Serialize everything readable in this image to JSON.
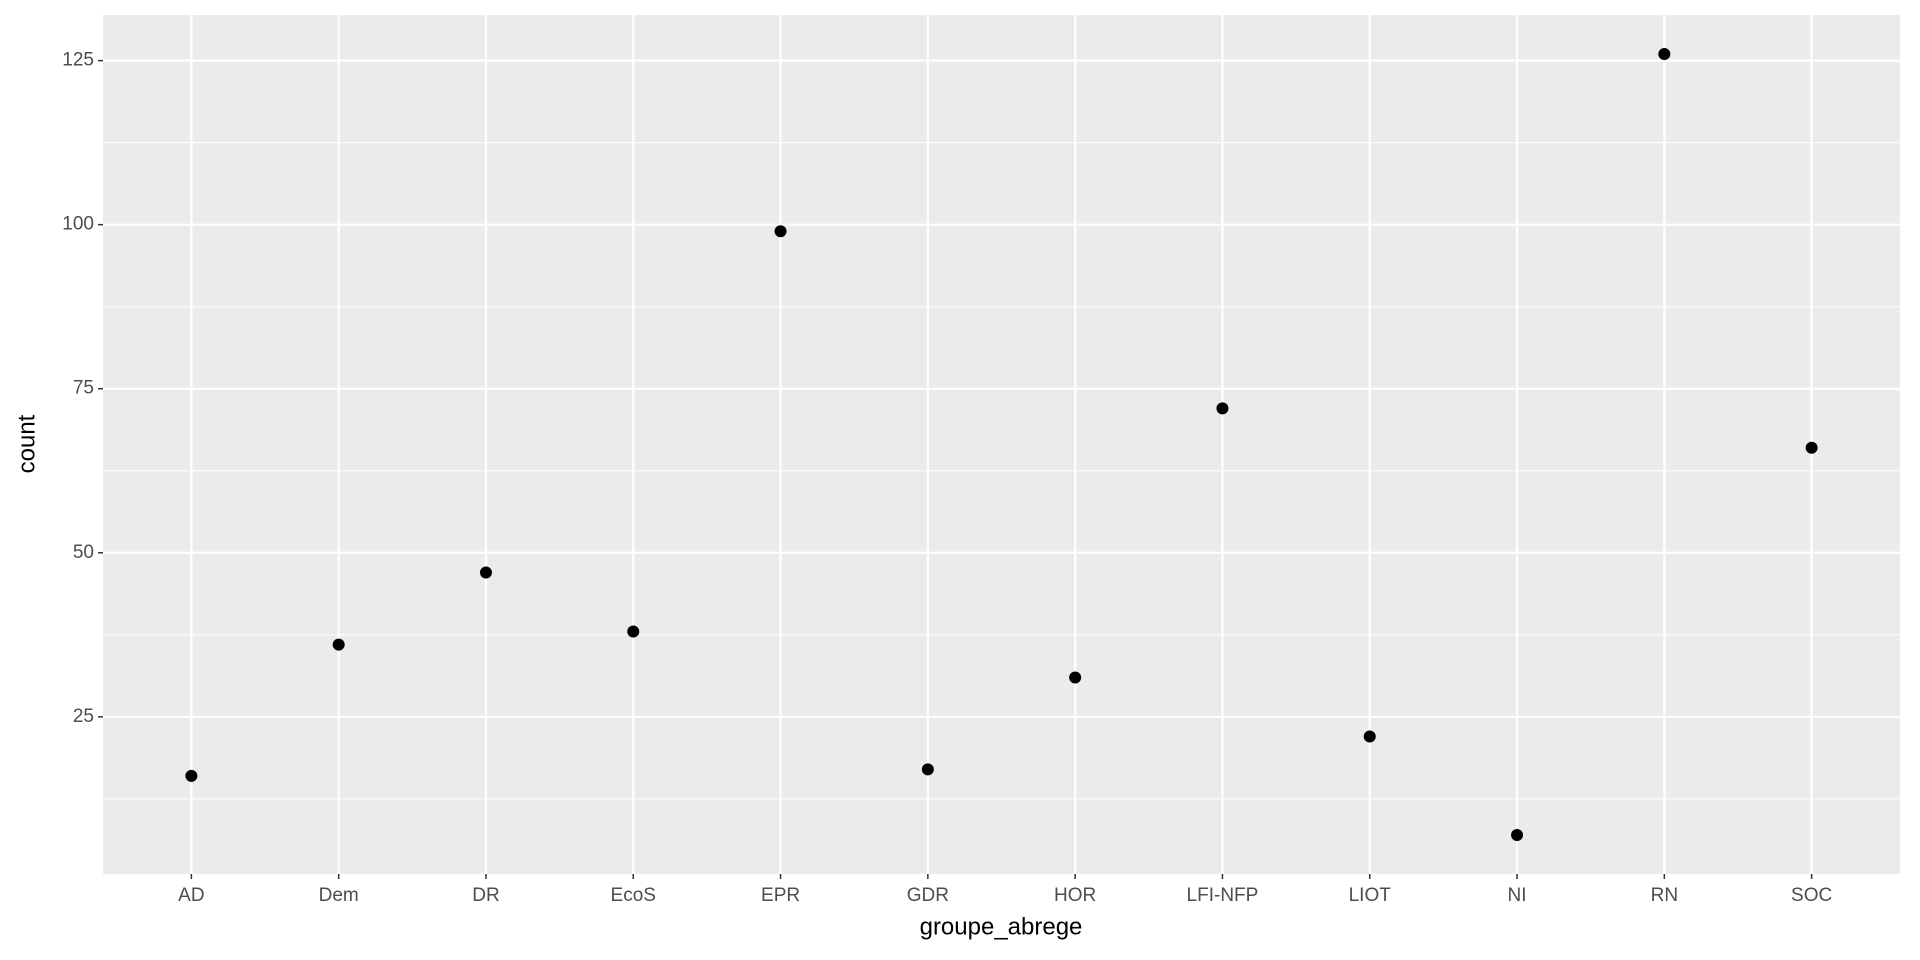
{
  "chart_data": {
    "type": "scatter",
    "x_label": "groupe_abrege",
    "y_label": "count",
    "categories": [
      "AD",
      "Dem",
      "DR",
      "EcoS",
      "EPR",
      "GDR",
      "HOR",
      "LFI-NFP",
      "LIOT",
      "NI",
      "RN",
      "SOC"
    ],
    "values": [
      16,
      36,
      47,
      38,
      99,
      17,
      31,
      72,
      22,
      7,
      126,
      66
    ],
    "color": "#000000",
    "ylim": [
      1.05,
      131.95
    ],
    "yticks": [
      25,
      50,
      75,
      100,
      125
    ],
    "grid": true
  }
}
